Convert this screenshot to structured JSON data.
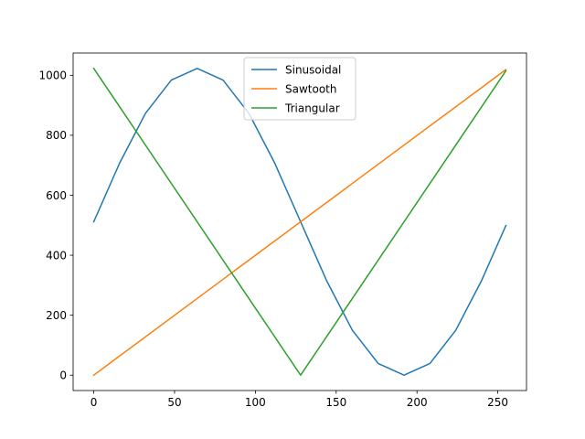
{
  "chart_data": {
    "type": "line",
    "title": "",
    "xlabel": "",
    "ylabel": "",
    "xlim": [
      -12.75,
      267.75
    ],
    "ylim": [
      -51.15,
      1074.15
    ],
    "xticks": [
      0,
      50,
      100,
      150,
      200,
      250
    ],
    "yticks": [
      0,
      200,
      400,
      600,
      800,
      1000
    ],
    "grid": false,
    "legend_position": "top-center",
    "series": [
      {
        "name": "Sinusoidal",
        "color": "#1f77b4",
        "x": [
          0,
          16,
          32,
          48,
          64,
          80,
          96,
          112,
          128,
          144,
          160,
          176,
          192,
          208,
          224,
          240,
          255
        ],
        "y": [
          511.5,
          707,
          873,
          984,
          1023,
          984,
          873,
          707,
          511.5,
          316,
          150,
          39,
          0,
          39,
          150,
          316,
          499
        ]
      },
      {
        "name": "Sawtooth",
        "color": "#ff7f0e",
        "x": [
          0,
          255
        ],
        "y": [
          0,
          1019
        ]
      },
      {
        "name": "Triangular",
        "color": "#2ca02c",
        "x": [
          0,
          128,
          255
        ],
        "y": [
          1023,
          0,
          1015
        ]
      }
    ]
  }
}
